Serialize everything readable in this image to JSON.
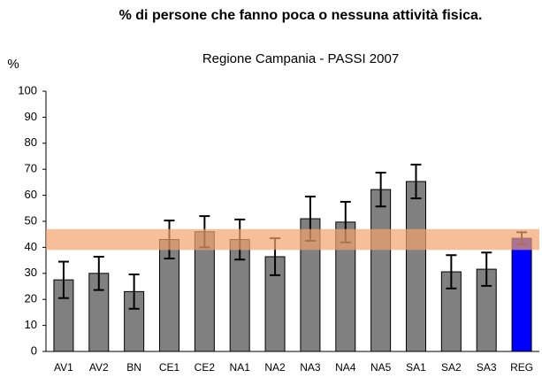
{
  "chart_data": {
    "type": "bar",
    "title": "% di persone che fanno poca o nessuna attività fisica.",
    "subtitle": "Regione Campania - PASSI 2007",
    "y_label": "%",
    "categories": [
      "AV1",
      "AV2",
      "BN",
      "CE1",
      "CE2",
      "NA1",
      "NA2",
      "NA3",
      "NA4",
      "NA5",
      "SA1",
      "SA2",
      "SA3",
      "REG"
    ],
    "values": [
      27.5,
      30,
      23,
      43,
      46,
      43,
      36.4,
      51,
      49.7,
      62.2,
      65.3,
      30.6,
      31.6,
      43.5
    ],
    "errors": [
      7,
      6.4,
      6.6,
      7.3,
      6,
      7.7,
      7.1,
      8.5,
      7.8,
      6.5,
      6.5,
      6.4,
      6.4,
      2.3
    ],
    "colors": [
      "#808080",
      "#808080",
      "#808080",
      "#808080",
      "#808080",
      "#808080",
      "#808080",
      "#808080",
      "#808080",
      "#808080",
      "#808080",
      "#808080",
      "#808080",
      "#0000ff"
    ],
    "band": [
      39,
      47
    ],
    "band_color": "#f4a46e",
    "ylim": [
      0,
      100
    ],
    "yticks": [
      0,
      10,
      20,
      30,
      40,
      50,
      60,
      70,
      80,
      90,
      100
    ],
    "grid": false
  }
}
